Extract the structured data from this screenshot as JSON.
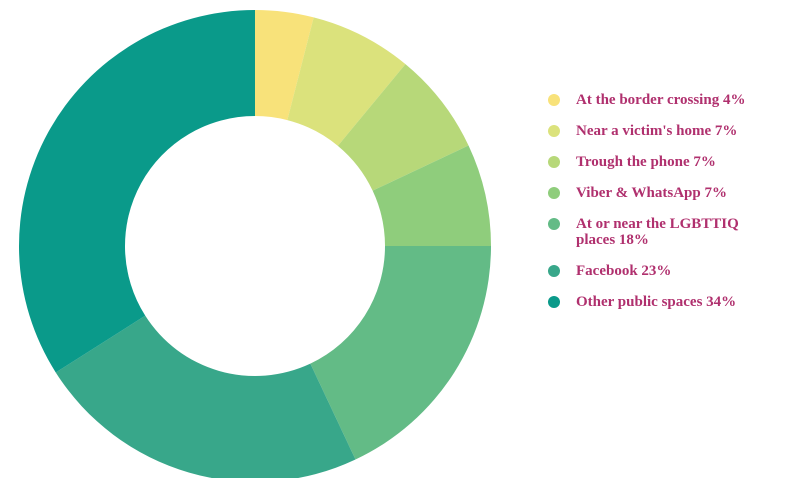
{
  "chart_data": {
    "type": "donut",
    "categories": [
      "At the border crossing",
      "Near a victim's home",
      "Trough the phone",
      "Viber & WhatsApp",
      "At or near the LGBTTIQ places",
      "Facebook",
      "Other public spaces"
    ],
    "values": [
      4,
      7,
      7,
      7,
      18,
      23,
      34
    ],
    "value_labels": [
      "4%",
      "7%",
      "7%",
      "7%",
      "18%",
      "23%",
      "34%"
    ],
    "colors": [
      "#f8e27a",
      "#dbe27c",
      "#b7d879",
      "#8fcd7c",
      "#63bb86",
      "#38a78a",
      "#0a9a8a"
    ]
  }
}
